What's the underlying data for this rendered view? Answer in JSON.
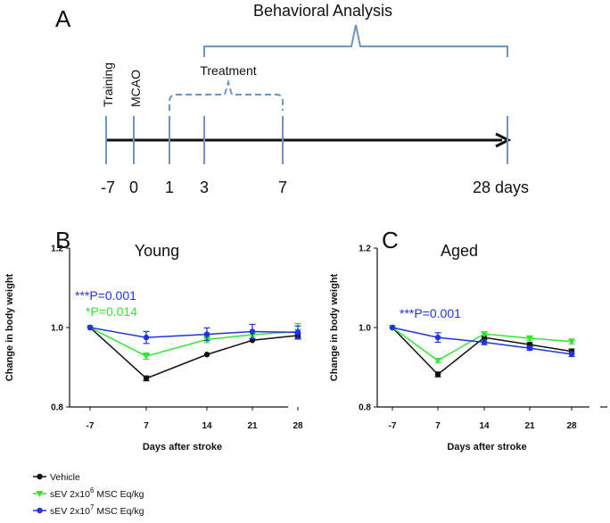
{
  "figure": {
    "panel_a_label": "A",
    "timeline": {
      "behavioral_label": "Behavioral Analysis",
      "treatment_label": "Treatment",
      "training_label": "Training",
      "mcao_label": "MCAO",
      "ticks": [
        "-7",
        "0",
        "1",
        "3",
        "7",
        "28 days"
      ]
    }
  },
  "legend": {
    "items": [
      {
        "name": "Vehicle",
        "color": "#111111",
        "marker": "circle",
        "pre": "Vehicle",
        "sup": "",
        "post": ""
      },
      {
        "name": "sEV 2x10^6 MSC Eq/kg",
        "color": "#33e633",
        "marker": "triangle-down",
        "pre": "sEV  2x10",
        "sup": "6",
        "post": " MSC Eq/kg"
      },
      {
        "name": "sEV 2x10^7 MSC Eq/kg",
        "color": "#2233dd",
        "marker": "circle",
        "pre": "sEV  2x10",
        "sup": "7",
        "post": " MSC Eq/kg"
      }
    ]
  },
  "chart_data": [
    {
      "type": "line",
      "panel": "B",
      "title": "Young",
      "xlabel": "Days after stroke",
      "ylabel": "Change in body weight",
      "categories": [
        "-7",
        "7",
        "14",
        "21",
        "28"
      ],
      "ylim": [
        0.8,
        1.2
      ],
      "yticks": [
        "0.8",
        "1.0",
        "1.2"
      ],
      "annotations": [
        {
          "text": "***P=0.001",
          "color": "#2233dd"
        },
        {
          "text": "*P=0.014",
          "color": "#33e633"
        }
      ],
      "series": [
        {
          "name": "Vehicle",
          "color": "#111111",
          "marker": "circle",
          "values": [
            1.0,
            0.872,
            0.932,
            0.968,
            0.98
          ],
          "errors": [
            0,
            0.006,
            0,
            0,
            0.005
          ]
        },
        {
          "name": "sEV 2x10^6 MSC Eq/kg",
          "color": "#33e633",
          "marker": "triangle-down",
          "values": [
            1.0,
            0.928,
            0.97,
            0.982,
            0.99
          ],
          "errors": [
            0,
            0.008,
            0.008,
            0.006,
            0.02
          ]
        },
        {
          "name": "sEV 2x10^7 MSC Eq/kg",
          "color": "#2233dd",
          "marker": "circle",
          "values": [
            1.0,
            0.975,
            0.983,
            0.99,
            0.988
          ],
          "errors": [
            0,
            0.015,
            0.016,
            0.018,
            0.016
          ]
        }
      ]
    },
    {
      "type": "line",
      "panel": "C",
      "title": "Aged",
      "xlabel": "Days after stroke",
      "ylabel": "Change in body weight",
      "categories": [
        "-7",
        "7",
        "14",
        "21",
        "28"
      ],
      "ylim": [
        0.8,
        1.2
      ],
      "yticks": [
        "0.8",
        "1.0",
        "1.2"
      ],
      "annotations": [
        {
          "text": "***P=0.001",
          "color": "#2233dd"
        }
      ],
      "series": [
        {
          "name": "Vehicle",
          "color": "#111111",
          "marker": "circle",
          "values": [
            1.0,
            0.882,
            0.975,
            0.957,
            0.94
          ],
          "errors": [
            0,
            0.006,
            0.005,
            0.005,
            0.006
          ]
        },
        {
          "name": "sEV 2x10^6 MSC Eq/kg",
          "color": "#33e633",
          "marker": "triangle-down",
          "values": [
            1.0,
            0.917,
            0.984,
            0.973,
            0.965
          ],
          "errors": [
            0,
            0.005,
            0.004,
            0.006,
            0.006
          ]
        },
        {
          "name": "sEV 2x10^7 MSC Eq/kg",
          "color": "#2233dd",
          "marker": "circle",
          "values": [
            1.0,
            0.975,
            0.963,
            0.948,
            0.933
          ],
          "errors": [
            0,
            0.012,
            0.006,
            0.005,
            0.006
          ]
        }
      ]
    }
  ]
}
